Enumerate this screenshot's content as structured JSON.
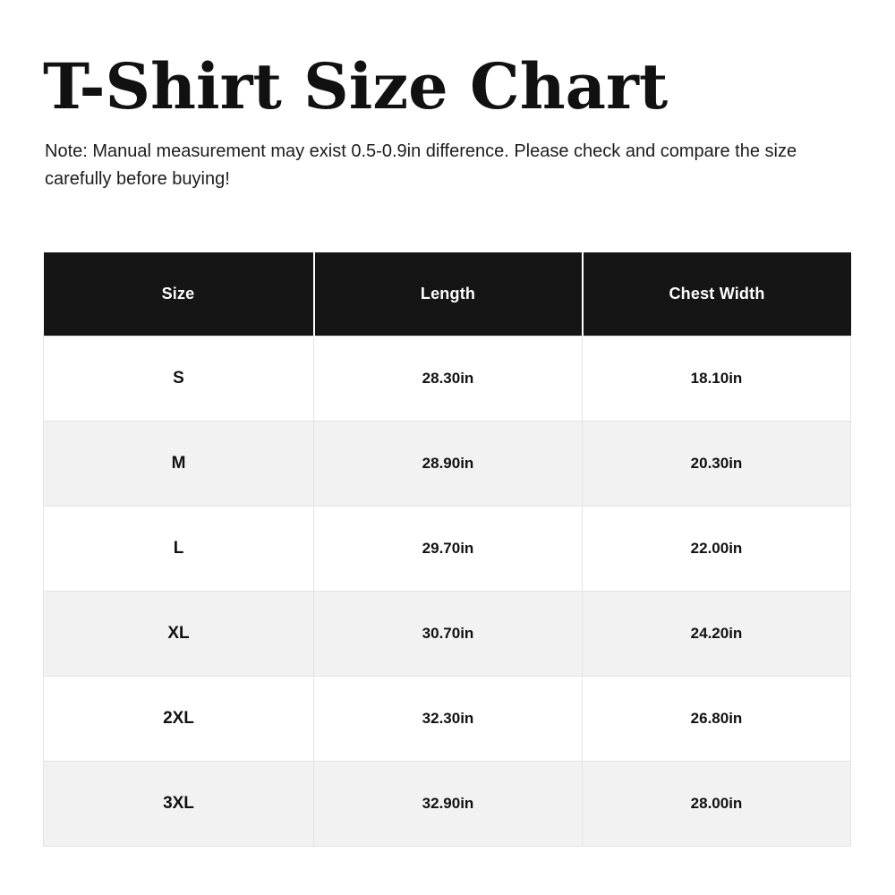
{
  "title": "T-Shirt Size Chart",
  "note": "Note: Manual measurement may exist 0.5-0.9in difference. Please check and compare the size carefully before buying!",
  "colors": {
    "header_bg": "#151515",
    "header_text": "#ffffff",
    "row_bg": "#ffffff",
    "row_alt_bg": "#f2f2f2",
    "cell_border": "#e4e4e4",
    "text": "#111111"
  },
  "chart_data": {
    "type": "table",
    "title": "T-Shirt Size Chart",
    "columns": [
      "Size",
      "Length",
      "Chest Width"
    ],
    "rows": [
      [
        "S",
        "28.30in",
        "18.10in"
      ],
      [
        "M",
        "28.90in",
        "20.30in"
      ],
      [
        "L",
        "29.70in",
        "22.00in"
      ],
      [
        "XL",
        "30.70in",
        "24.20in"
      ],
      [
        "2XL",
        "32.30in",
        "26.80in"
      ],
      [
        "3XL",
        "32.90in",
        "28.00in"
      ]
    ]
  }
}
